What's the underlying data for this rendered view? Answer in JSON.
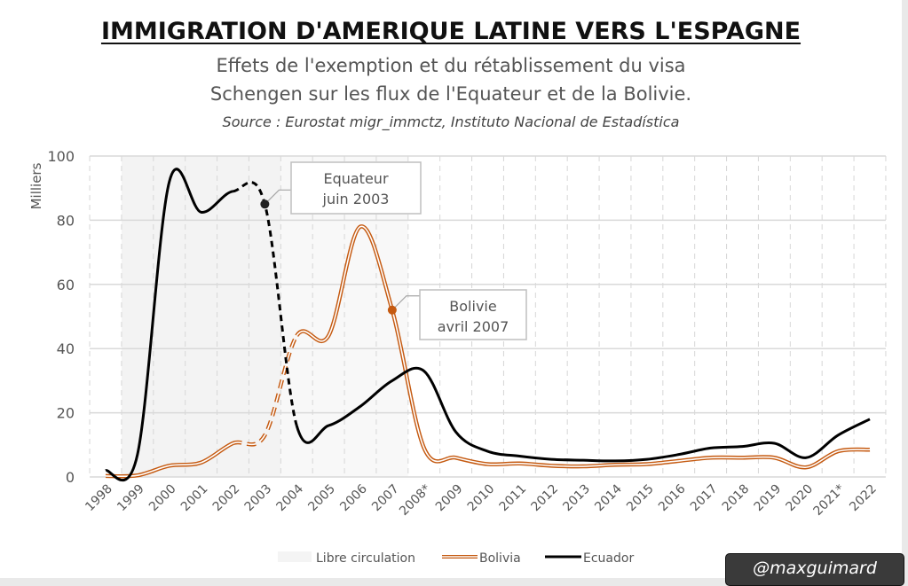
{
  "header": {
    "title": "IMMIGRATION D'AMERIQUE LATINE VERS L'ESPAGNE",
    "subtitle_line1": "Effets de l'exemption et du rétablissement du visa",
    "subtitle_line2": "Schengen sur les flux de l'Equateur et de la Bolivie.",
    "source": "Source : Eurostat migr_immctz, Instituto Nacional de Estadística"
  },
  "credit": "@maxguimard",
  "chart_data": {
    "type": "line",
    "ylabel": "Milliers",
    "ylim": [
      0,
      100
    ],
    "yticks": [
      0,
      20,
      40,
      60,
      80,
      100
    ],
    "grid": true,
    "legend_placement": "bottom",
    "categories": [
      "1998",
      "1999",
      "2000",
      "2001",
      "2002",
      "2003",
      "2004",
      "2005",
      "2006",
      "2007",
      "2008*",
      "2009",
      "2010",
      "2011",
      "2012",
      "2013",
      "2014",
      "2015",
      "2016",
      "2017",
      "2018",
      "2019",
      "2020",
      "2021*",
      "2022"
    ],
    "shaded_band": {
      "name": "Libre circulation",
      "from": "1999",
      "to": "2007",
      "color": "#f4f4f4"
    },
    "dashed_between": [
      "2002",
      "2004"
    ],
    "series": [
      {
        "name": "Bolivia",
        "color": "#c55a11",
        "style": "double",
        "values": [
          0.3,
          0.5,
          3.5,
          4.5,
          10.5,
          13,
          44,
          44,
          78,
          52,
          9,
          6,
          4,
          4.2,
          3.5,
          3.3,
          3.8,
          4,
          5,
          6,
          6,
          6,
          3,
          8,
          8.5
        ]
      },
      {
        "name": "Ecuador",
        "color": "#000000",
        "style": "solid",
        "values": [
          2,
          7,
          92,
          82.5,
          89,
          85,
          16,
          16,
          22,
          30,
          33,
          14,
          8,
          6.5,
          5.5,
          5.2,
          5,
          5.5,
          7,
          9,
          9.5,
          10.5,
          6,
          13,
          18
        ]
      }
    ],
    "annotations": [
      {
        "series": "Ecuador",
        "at": "2003",
        "value": 85,
        "line1": "Equateur",
        "line2": "juin 2003"
      },
      {
        "series": "Bolivia",
        "at": "2007",
        "value": 52,
        "line1": "Bolivie",
        "line2": "avril 2007"
      }
    ]
  }
}
